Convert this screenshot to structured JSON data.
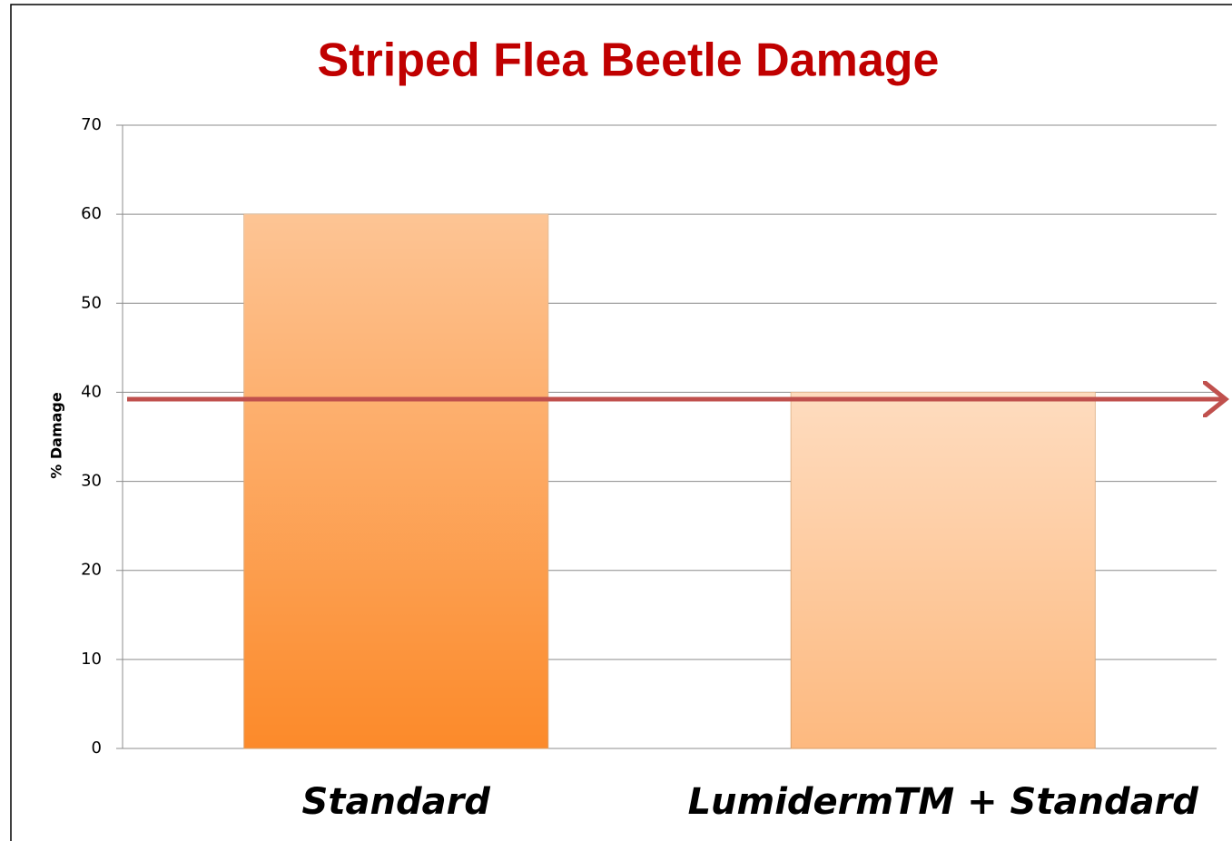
{
  "chart_data": {
    "type": "bar",
    "title": "Striped Flea Beetle Damage",
    "y_label": "% Damage",
    "categories": [
      "Standard",
      "LumidermTM + Standard"
    ],
    "values": [
      60,
      40
    ],
    "colors": [
      "#fc8a2a",
      "#fdb97f"
    ],
    "ylim": [
      0,
      70
    ],
    "yticks": [
      0,
      10,
      20,
      30,
      40,
      50,
      60,
      70
    ],
    "grid": true
  }
}
